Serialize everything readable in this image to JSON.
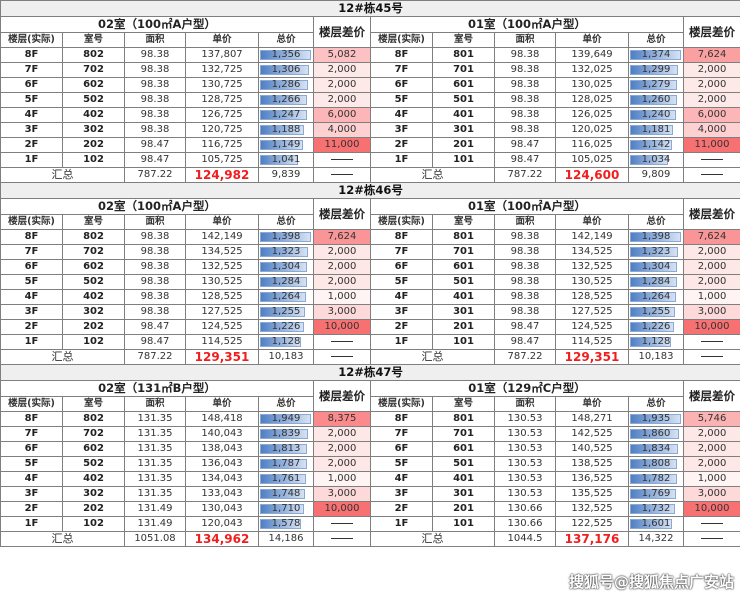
{
  "columns": [
    "楼层(实际)",
    "室号",
    "面积",
    "单价",
    "总价"
  ],
  "diff_header": "楼层差价",
  "summary_label": "汇总",
  "dash": "——",
  "colors": {
    "bar": "#4f7fc4",
    "diff_max": "#f8696b",
    "summary_price": "#f21d1d"
  },
  "watermark": "搜狐号@搜狐焦点广安站",
  "buildings": [
    {
      "title": "12#栋45号",
      "units": [
        {
          "room_title": "02室（100㎡A户型）",
          "rows": [
            {
              "floor": "8F",
              "room": "802",
              "area": "98.38",
              "price": "137,807",
              "total": "1,356",
              "diff": "5,082"
            },
            {
              "floor": "7F",
              "room": "702",
              "area": "98.38",
              "price": "132,725",
              "total": "1,306",
              "diff": "2,000"
            },
            {
              "floor": "6F",
              "room": "602",
              "area": "98.38",
              "price": "130,725",
              "total": "1,286",
              "diff": "2,000"
            },
            {
              "floor": "5F",
              "room": "502",
              "area": "98.38",
              "price": "128,725",
              "total": "1,266",
              "diff": "2,000"
            },
            {
              "floor": "4F",
              "room": "402",
              "area": "98.38",
              "price": "126,725",
              "total": "1,247",
              "diff": "6,000"
            },
            {
              "floor": "3F",
              "room": "302",
              "area": "98.38",
              "price": "120,725",
              "total": "1,188",
              "diff": "4,000"
            },
            {
              "floor": "2F",
              "room": "202",
              "area": "98.47",
              "price": "116,725",
              "total": "1,149",
              "diff": "11,000"
            },
            {
              "floor": "1F",
              "room": "102",
              "area": "98.47",
              "price": "105,725",
              "total": "1,041",
              "diff": null
            }
          ],
          "summary": {
            "area": "787.22",
            "price": "124,982",
            "total": "9,839"
          }
        },
        {
          "room_title": "01室（100㎡A户型）",
          "rows": [
            {
              "floor": "8F",
              "room": "801",
              "area": "98.38",
              "price": "139,649",
              "total": "1,374",
              "diff": "7,624"
            },
            {
              "floor": "7F",
              "room": "701",
              "area": "98.38",
              "price": "132,025",
              "total": "1,299",
              "diff": "2,000"
            },
            {
              "floor": "6F",
              "room": "601",
              "area": "98.38",
              "price": "130,025",
              "total": "1,279",
              "diff": "2,000"
            },
            {
              "floor": "5F",
              "room": "501",
              "area": "98.38",
              "price": "128,025",
              "total": "1,260",
              "diff": "2,000"
            },
            {
              "floor": "4F",
              "room": "401",
              "area": "98.38",
              "price": "126,025",
              "total": "1,240",
              "diff": "6,000"
            },
            {
              "floor": "3F",
              "room": "301",
              "area": "98.38",
              "price": "120,025",
              "total": "1,181",
              "diff": "4,000"
            },
            {
              "floor": "2F",
              "room": "201",
              "area": "98.47",
              "price": "116,025",
              "total": "1,142",
              "diff": "11,000"
            },
            {
              "floor": "1F",
              "room": "101",
              "area": "98.47",
              "price": "105,025",
              "total": "1,034",
              "diff": null
            }
          ],
          "summary": {
            "area": "787.22",
            "price": "124,600",
            "total": "9,809"
          }
        }
      ]
    },
    {
      "title": "12#栋46号",
      "units": [
        {
          "room_title": "02室（100㎡A户型）",
          "rows": [
            {
              "floor": "8F",
              "room": "802",
              "area": "98.38",
              "price": "142,149",
              "total": "1,398",
              "diff": "7,624"
            },
            {
              "floor": "7F",
              "room": "702",
              "area": "98.38",
              "price": "134,525",
              "total": "1,323",
              "diff": "2,000"
            },
            {
              "floor": "6F",
              "room": "602",
              "area": "98.38",
              "price": "132,525",
              "total": "1,304",
              "diff": "2,000"
            },
            {
              "floor": "5F",
              "room": "502",
              "area": "98.38",
              "price": "130,525",
              "total": "1,284",
              "diff": "2,000"
            },
            {
              "floor": "4F",
              "room": "402",
              "area": "98.38",
              "price": "128,525",
              "total": "1,264",
              "diff": "1,000"
            },
            {
              "floor": "3F",
              "room": "302",
              "area": "98.38",
              "price": "127,525",
              "total": "1,255",
              "diff": "3,000"
            },
            {
              "floor": "2F",
              "room": "202",
              "area": "98.47",
              "price": "124,525",
              "total": "1,226",
              "diff": "10,000"
            },
            {
              "floor": "1F",
              "room": "102",
              "area": "98.47",
              "price": "114,525",
              "total": "1,128",
              "diff": null
            }
          ],
          "summary": {
            "area": "787.22",
            "price": "129,351",
            "total": "10,183"
          }
        },
        {
          "room_title": "01室（100㎡A户型）",
          "rows": [
            {
              "floor": "8F",
              "room": "801",
              "area": "98.38",
              "price": "142,149",
              "total": "1,398",
              "diff": "7,624"
            },
            {
              "floor": "7F",
              "room": "701",
              "area": "98.38",
              "price": "134,525",
              "total": "1,323",
              "diff": "2,000"
            },
            {
              "floor": "6F",
              "room": "601",
              "area": "98.38",
              "price": "132,525",
              "total": "1,304",
              "diff": "2,000"
            },
            {
              "floor": "5F",
              "room": "501",
              "area": "98.38",
              "price": "130,525",
              "total": "1,284",
              "diff": "2,000"
            },
            {
              "floor": "4F",
              "room": "401",
              "area": "98.38",
              "price": "128,525",
              "total": "1,264",
              "diff": "1,000"
            },
            {
              "floor": "3F",
              "room": "301",
              "area": "98.38",
              "price": "127,525",
              "total": "1,255",
              "diff": "3,000"
            },
            {
              "floor": "2F",
              "room": "201",
              "area": "98.47",
              "price": "124,525",
              "total": "1,226",
              "diff": "10,000"
            },
            {
              "floor": "1F",
              "room": "101",
              "area": "98.47",
              "price": "114,525",
              "total": "1,128",
              "diff": null
            }
          ],
          "summary": {
            "area": "787.22",
            "price": "129,351",
            "total": "10,183"
          }
        }
      ]
    },
    {
      "title": "12#栋47号",
      "units": [
        {
          "room_title": "02室（131㎡B户型）",
          "rows": [
            {
              "floor": "8F",
              "room": "802",
              "area": "131.35",
              "price": "148,418",
              "total": "1,949",
              "diff": "8,375"
            },
            {
              "floor": "7F",
              "room": "702",
              "area": "131.35",
              "price": "140,043",
              "total": "1,839",
              "diff": "2,000"
            },
            {
              "floor": "6F",
              "room": "602",
              "area": "131.35",
              "price": "138,043",
              "total": "1,813",
              "diff": "2,000"
            },
            {
              "floor": "5F",
              "room": "502",
              "area": "131.35",
              "price": "136,043",
              "total": "1,787",
              "diff": "2,000"
            },
            {
              "floor": "4F",
              "room": "402",
              "area": "131.35",
              "price": "134,043",
              "total": "1,761",
              "diff": "1,000"
            },
            {
              "floor": "3F",
              "room": "302",
              "area": "131.35",
              "price": "133,043",
              "total": "1,748",
              "diff": "3,000"
            },
            {
              "floor": "2F",
              "room": "202",
              "area": "131.49",
              "price": "130,043",
              "total": "1,710",
              "diff": "10,000"
            },
            {
              "floor": "1F",
              "room": "102",
              "area": "131.49",
              "price": "120,043",
              "total": "1,578",
              "diff": null
            }
          ],
          "summary": {
            "area": "1051.08",
            "price": "134,962",
            "total": "14,186"
          }
        },
        {
          "room_title": "01室（129㎡C户型）",
          "rows": [
            {
              "floor": "8F",
              "room": "801",
              "area": "130.53",
              "price": "148,271",
              "total": "1,935",
              "diff": "5,746"
            },
            {
              "floor": "7F",
              "room": "701",
              "area": "130.53",
              "price": "142,525",
              "total": "1,860",
              "diff": "2,000"
            },
            {
              "floor": "6F",
              "room": "601",
              "area": "130.53",
              "price": "140,525",
              "total": "1,834",
              "diff": "2,000"
            },
            {
              "floor": "5F",
              "room": "501",
              "area": "130.53",
              "price": "138,525",
              "total": "1,808",
              "diff": "2,000"
            },
            {
              "floor": "4F",
              "room": "401",
              "area": "130.53",
              "price": "136,525",
              "total": "1,782",
              "diff": "1,000"
            },
            {
              "floor": "3F",
              "room": "301",
              "area": "130.53",
              "price": "135,525",
              "total": "1,769",
              "diff": "3,000"
            },
            {
              "floor": "2F",
              "room": "201",
              "area": "130.66",
              "price": "132,525",
              "total": "1,732",
              "diff": "10,000"
            },
            {
              "floor": "1F",
              "room": "101",
              "area": "130.66",
              "price": "122,525",
              "total": "1,601",
              "diff": null
            }
          ],
          "summary": {
            "area": "1044.5",
            "price": "137,176",
            "total": "14,322"
          }
        }
      ]
    }
  ]
}
